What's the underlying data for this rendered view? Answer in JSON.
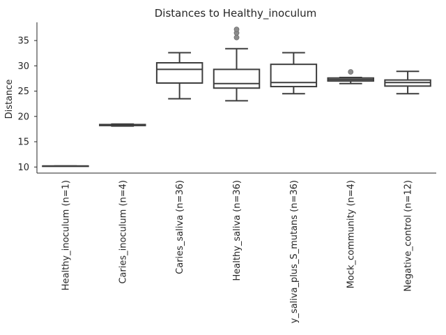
{
  "chart_data": {
    "type": "box",
    "title": "Distances to Healthy_inoculum",
    "xlabel": "",
    "ylabel": "Distance",
    "ylim": [
      8.8,
      38.6
    ],
    "yticks": [
      10,
      15,
      20,
      25,
      30,
      35
    ],
    "grid": false,
    "categories": [
      "Healthy_inoculum (n=1)",
      "Caries_inoculum (n=4)",
      "Caries_saliva (n=36)",
      "Healthy_saliva (n=36)",
      "y_saliva_plus_S_mutans (n=36)",
      "Mock_community (n=4)",
      "Negative_control (n=12)"
    ],
    "boxes": [
      {
        "whislo": 10.2,
        "q1": 10.2,
        "med": 10.2,
        "q3": 10.2,
        "whishi": 10.2,
        "fliers": []
      },
      {
        "whislo": 18.1,
        "q1": 18.2,
        "med": 18.25,
        "q3": 18.4,
        "whishi": 18.5,
        "fliers": []
      },
      {
        "whislo": 23.5,
        "q1": 26.6,
        "med": 29.3,
        "q3": 30.6,
        "whishi": 32.6,
        "fliers": []
      },
      {
        "whislo": 23.1,
        "q1": 25.6,
        "med": 26.5,
        "q3": 29.3,
        "whishi": 33.4,
        "fliers": [
          35.6,
          36.5,
          37.2
        ]
      },
      {
        "whislo": 24.5,
        "q1": 25.9,
        "med": 26.7,
        "q3": 30.3,
        "whishi": 32.6,
        "fliers": []
      },
      {
        "whislo": 26.5,
        "q1": 27.0,
        "med": 27.3,
        "q3": 27.6,
        "whishi": 27.7,
        "fliers": [
          28.8
        ]
      },
      {
        "whislo": 24.5,
        "q1": 26.0,
        "med": 26.7,
        "q3": 27.2,
        "whishi": 28.9,
        "fliers": []
      }
    ],
    "colors": {
      "box_fill": "#ffffff",
      "line": "#3d3d3d",
      "flier": "#8c8c8c",
      "axis": "#262626"
    }
  }
}
